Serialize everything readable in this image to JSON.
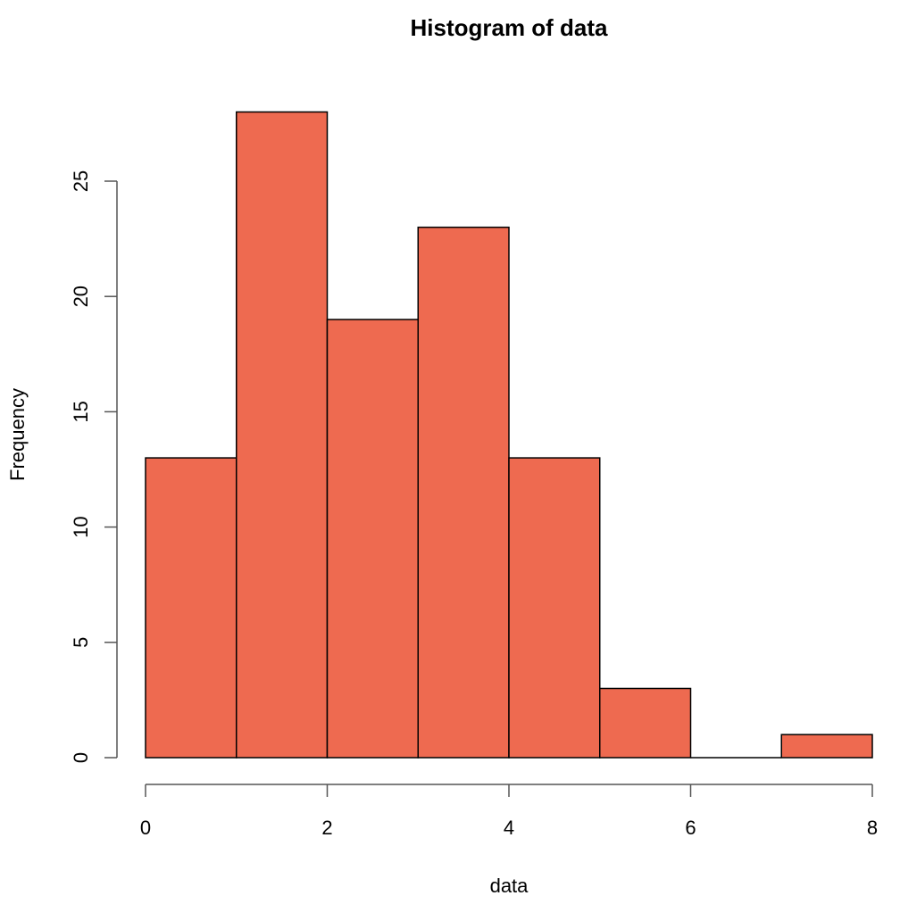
{
  "chart_data": {
    "type": "bar",
    "title": "Histogram of data",
    "xlabel": "data",
    "ylabel": "Frequency",
    "bins": [
      [
        0,
        1
      ],
      [
        1,
        2
      ],
      [
        2,
        3
      ],
      [
        3,
        4
      ],
      [
        4,
        5
      ],
      [
        5,
        6
      ],
      [
        6,
        7
      ],
      [
        7,
        8
      ]
    ],
    "categories": [
      "0-1",
      "1-2",
      "2-3",
      "3-4",
      "4-5",
      "5-6",
      "6-7",
      "7-8"
    ],
    "values": [
      13,
      28,
      19,
      23,
      13,
      3,
      0,
      1
    ],
    "xlim": [
      0,
      8
    ],
    "ylim": [
      0,
      28
    ],
    "xticks": [
      0,
      2,
      4,
      6,
      8
    ],
    "yticks": [
      0,
      5,
      10,
      15,
      20,
      25
    ],
    "bar_color": "#EE6A50",
    "border_color": "#000000",
    "grid": false,
    "legend": null
  }
}
